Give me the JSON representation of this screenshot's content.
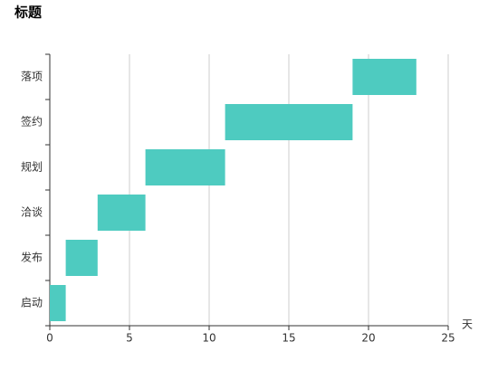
{
  "chart_data": {
    "type": "floating-bar",
    "title": "标题",
    "x_label": "天",
    "categories": [
      "启动",
      "发布",
      "洽谈",
      "规划",
      "签约",
      "落项"
    ],
    "values": [
      [
        0,
        1
      ],
      [
        1,
        3
      ],
      [
        3,
        6
      ],
      [
        6,
        11
      ],
      [
        11,
        19
      ],
      [
        19,
        23
      ]
    ],
    "color": "#4ecbc0",
    "xlim": [
      0,
      25
    ],
    "xticks": [
      0,
      5,
      10,
      15,
      20,
      25
    ],
    "grid": true
  }
}
